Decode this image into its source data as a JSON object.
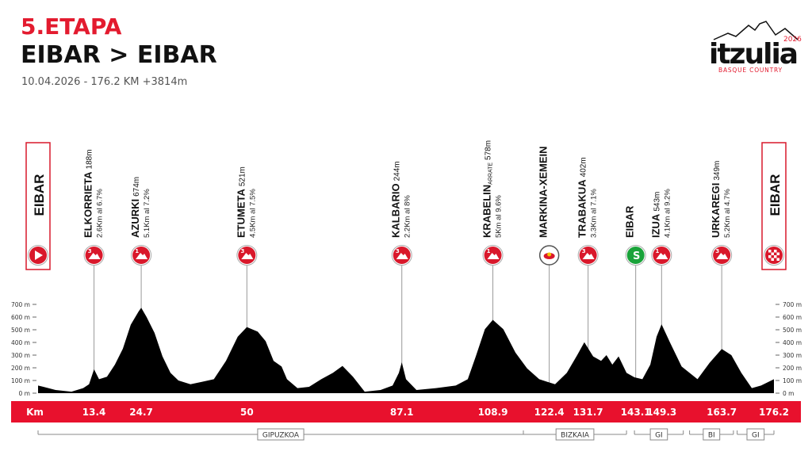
{
  "header": {
    "title": "5.ETAPA",
    "route": "EIBAR > EIBAR",
    "subtitle": "10.04.2026 - 176.2 KM +3814m"
  },
  "logo": {
    "name": "itzulia",
    "year": "2026",
    "tagline": "BASQUE COUNTRY"
  },
  "chart_data": {
    "type": "area",
    "color": "#000000",
    "xlim": [
      0,
      176.2
    ],
    "ylim": [
      0,
      700
    ],
    "yticks": [
      {
        "value": 0,
        "label": "0 m"
      },
      {
        "value": 100,
        "label": "100 m"
      },
      {
        "value": 200,
        "label": "200 m"
      },
      {
        "value": 300,
        "label": "300 m"
      },
      {
        "value": 400,
        "label": "400 m"
      },
      {
        "value": 500,
        "label": "500 m"
      },
      {
        "value": 600,
        "label": "600 m"
      },
      {
        "value": 700,
        "label": "700 m"
      }
    ],
    "x": [
      0,
      1.3,
      4.2,
      8,
      10.8,
      12.2,
      13.4,
      14.6,
      16.5,
      18.4,
      20.3,
      22.2,
      24.1,
      24.7,
      26,
      27.9,
      29.8,
      31.7,
      33.6,
      36.5,
      39.3,
      42.1,
      45,
      47.8,
      50,
      52.6,
      54.5,
      56.4,
      58.3,
      59.6,
      62.1,
      64.9,
      67.8,
      70.6,
      72.9,
      75.4,
      78.2,
      82,
      84.9,
      86.4,
      87.1,
      88.1,
      90.6,
      95.3,
      100,
      102.9,
      104.8,
      107,
      108.9,
      111.4,
      114.3,
      117.1,
      120,
      121.9,
      123.8,
      126.6,
      129.1,
      130.8,
      132.9,
      134.8,
      136.1,
      137.5,
      139,
      140.9,
      142.8,
      144.7,
      146.6,
      148.1,
      149.3,
      151.3,
      154.1,
      157.9,
      160.8,
      163.7,
      166,
      168.4,
      170.9,
      173.1,
      176.2
    ],
    "values": [
      60,
      50,
      25,
      12,
      40,
      70,
      188,
      110,
      130,
      225,
      350,
      540,
      645,
      674,
      600,
      475,
      290,
      160,
      100,
      70,
      90,
      110,
      255,
      445,
      521,
      485,
      410,
      255,
      210,
      110,
      40,
      50,
      110,
      160,
      215,
      130,
      12,
      25,
      60,
      160,
      244,
      110,
      25,
      40,
      60,
      110,
      290,
      505,
      578,
      505,
      320,
      195,
      110,
      90,
      70,
      160,
      300,
      402,
      290,
      255,
      300,
      225,
      290,
      160,
      125,
      110,
      225,
      445,
      543,
      400,
      210,
      110,
      240,
      349,
      300,
      160,
      40,
      60,
      110
    ],
    "km_unit": "Km",
    "waypoints": [
      {
        "name": "EIBAR",
        "icon": "start"
      },
      {
        "name": "ELKORRIETA",
        "elevation": "188m",
        "detail": "2.6Km al 6.7%",
        "km": 13.4,
        "icon": "climb",
        "category": 3
      },
      {
        "name": "AZURKI",
        "elevation": "674m",
        "detail": "5.1Km al 7.2%",
        "km": 24.7,
        "icon": "climb",
        "category": 1
      },
      {
        "name": "ETUMETA",
        "elevation": "521m",
        "detail": "4.5Km al 7.5%",
        "km": 50,
        "icon": "climb",
        "category": 3
      },
      {
        "name": "KALBARIO",
        "elevation": "244m",
        "detail": "2.2Km al 8%",
        "km": 87.1,
        "icon": "climb",
        "category": 3
      },
      {
        "name": "KRABELIN",
        "suffix": "ARRATE",
        "elevation": "578m",
        "detail": "5Km al 9.6%",
        "km": 108.9,
        "icon": "climb",
        "category": 1
      },
      {
        "name": "MARKINA-XEMEIN",
        "km": 122.4,
        "icon": "redbull"
      },
      {
        "name": "TRABAKUA",
        "elevation": "402m",
        "detail": "3.3Km al 7.1%",
        "km": 131.7,
        "icon": "climb",
        "category": 3
      },
      {
        "name": "EIBAR",
        "km": 143.1,
        "icon": "sprint",
        "icon_text": "S"
      },
      {
        "name": "IZUA",
        "elevation": "543m",
        "detail": "4.1Km al 9.2%",
        "km": 149.3,
        "icon": "climb",
        "category": 1
      },
      {
        "name": "URKAREGI",
        "elevation": "349m",
        "detail": "5.2Km al 4.7%",
        "km": 163.7,
        "icon": "climb",
        "category": 3
      },
      {
        "name": "EIBAR",
        "km": 176.2,
        "icon": "finish"
      }
    ],
    "regions": [
      {
        "name": "GIPUZKOA",
        "from": 0,
        "to": 116.2
      },
      {
        "name": "BIZKAIA",
        "from": 116.2,
        "to": 140.9
      },
      {
        "name": "GI",
        "from": 142.8,
        "to": 154.5
      },
      {
        "name": "BI",
        "from": 156,
        "to": 166.5
      },
      {
        "name": "GI",
        "from": 167.4,
        "to": 176.2
      }
    ]
  }
}
